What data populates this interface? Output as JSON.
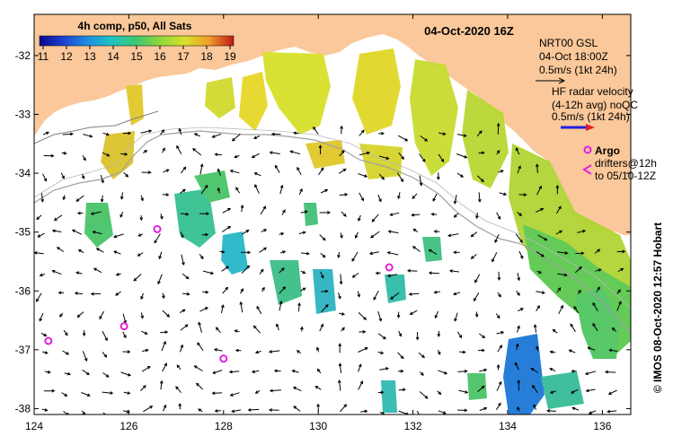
{
  "title": "04-Oct-2020 16Z",
  "colorbar": {
    "label": "4h comp, p50, All Sats",
    "ticks": [
      "11",
      "12",
      "13",
      "14",
      "15",
      "16",
      "17",
      "18",
      "19"
    ],
    "colors": [
      "#0a0a8c",
      "#1c3fd0",
      "#1e8fe0",
      "#1fc4c0",
      "#3cc870",
      "#8fd83a",
      "#d8e02a",
      "#f0a028",
      "#c01818"
    ]
  },
  "legend": {
    "gsl_title": "NRT00 GSL",
    "gsl_time": "04-Oct 18:00Z",
    "gsl_scale": "0.5m/s (1kt 24h)",
    "hf_title": "HF radar velocity",
    "hf_avg": "(4-12h avg) noQC",
    "hf_scale": "0.5m/s (1kt 24h)",
    "argo_title": "Argo",
    "drifters_line1": "drifters@12h",
    "drifters_line2": "to 05/10-12Z",
    "colors": {
      "land": "#fac89a",
      "argo": "#e020e0",
      "hf": "#2020e0",
      "hf_tip": "#e02020"
    }
  },
  "axes": {
    "x_ticks": [
      "124",
      "126",
      "128",
      "130",
      "132",
      "134",
      "136"
    ],
    "y_ticks": [
      "-32",
      "-33",
      "-34",
      "-35",
      "-36",
      "-37",
      "-38"
    ],
    "xlim": [
      124,
      136.6
    ],
    "ylim": [
      -38.1,
      -31.3
    ]
  },
  "credit": "© IMOS 08-Oct-2020 12:57 Hobart",
  "argo_floats": [
    [
      126.6,
      -34.95
    ],
    [
      131.5,
      -35.6
    ],
    [
      128.0,
      -37.15
    ],
    [
      124.3,
      -36.85
    ],
    [
      125.9,
      -36.6
    ]
  ]
}
